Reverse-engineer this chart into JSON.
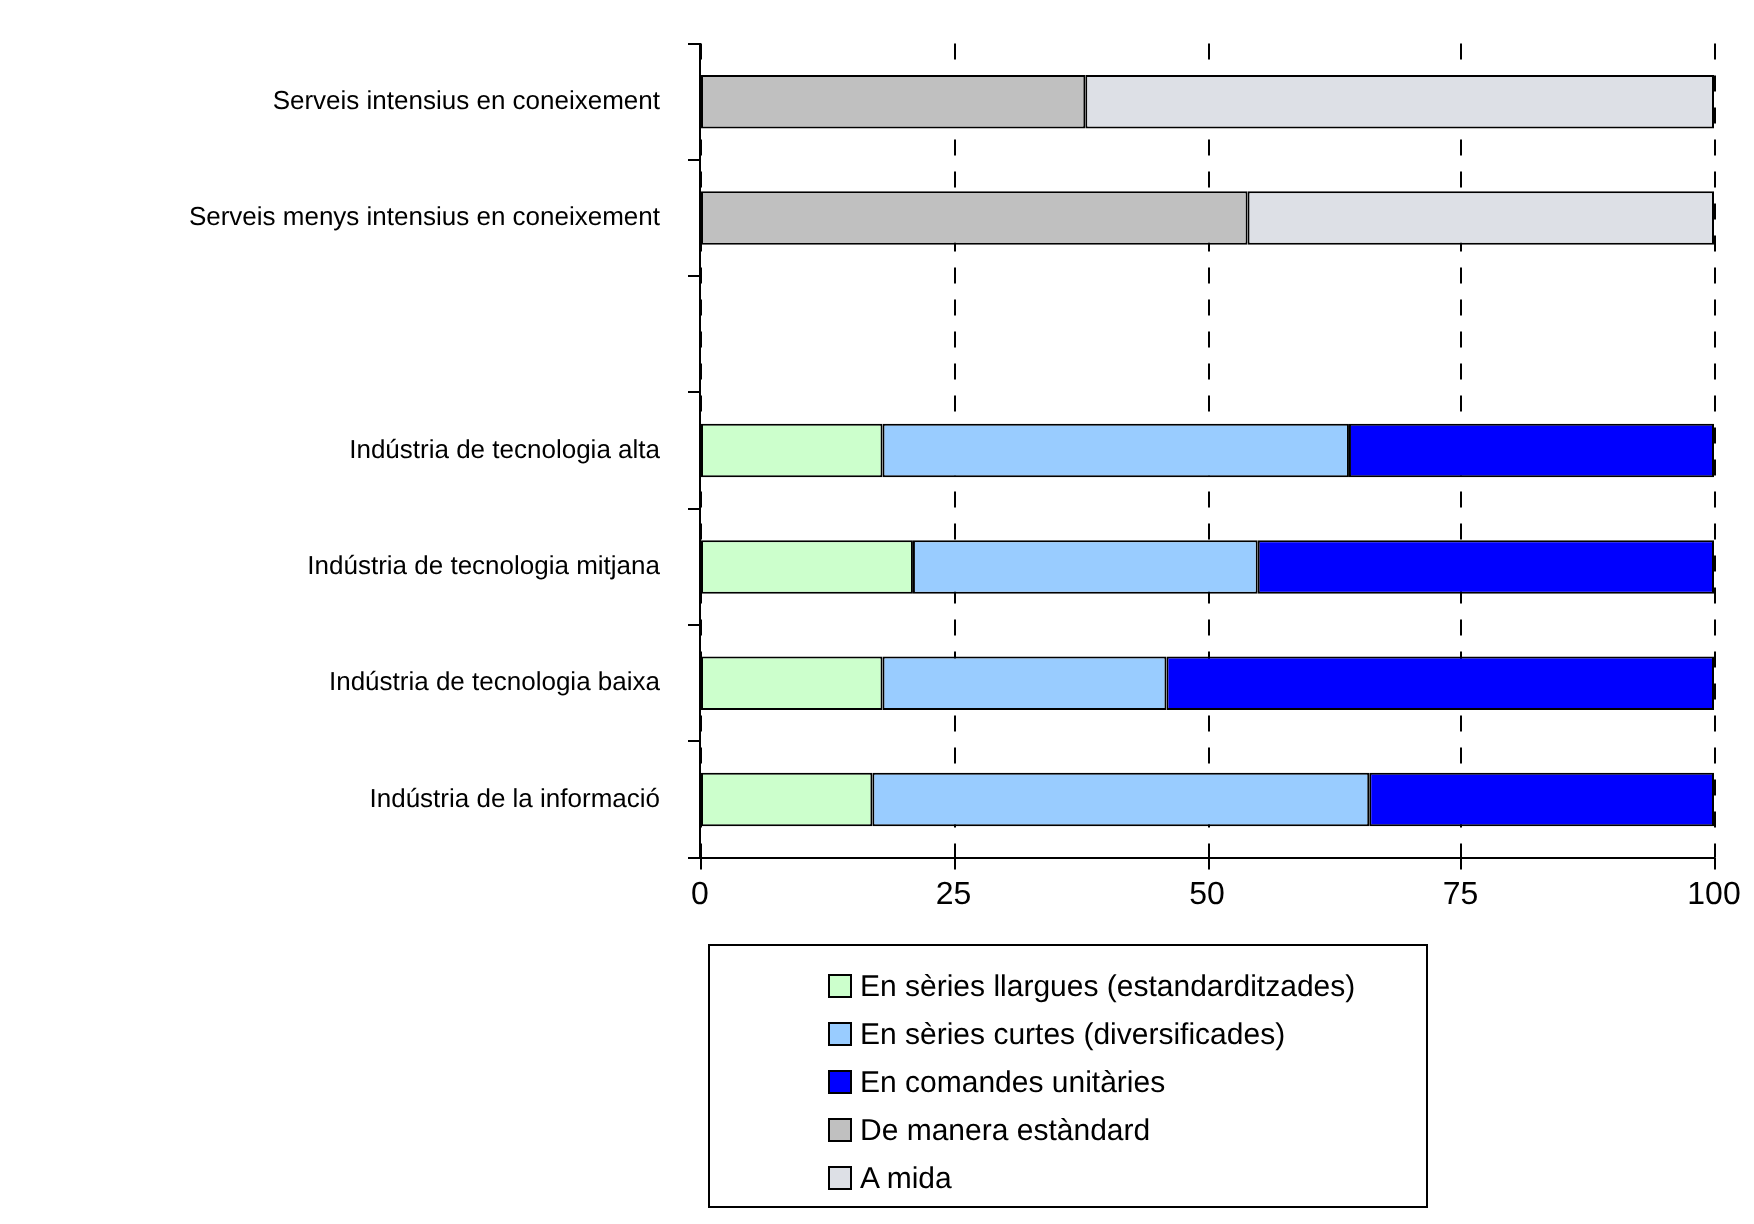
{
  "chart_data": {
    "type": "bar",
    "orientation": "horizontal",
    "stacked": true,
    "categories": [
      "Serveis intensius en coneixement",
      "Serveis menys intensius en coneixement",
      null,
      "Indústria de tecnologia alta",
      "Indústria de tecnologia mitjana",
      "Indústria de tecnologia baixa",
      "Indústria de la informació"
    ],
    "series": [
      {
        "name": "En sèries llargues (estandarditzades)",
        "color": "#ccffcc",
        "values": [
          null,
          null,
          null,
          18,
          21,
          18,
          17
        ]
      },
      {
        "name": "En sèries curtes (diversificades)",
        "color": "#99ccff",
        "values": [
          null,
          null,
          null,
          46,
          34,
          28,
          49
        ]
      },
      {
        "name": "En comandes unitàries",
        "color": "#0000ff",
        "values": [
          null,
          null,
          null,
          36,
          45,
          54,
          34
        ]
      },
      {
        "name": "De manera estàndard",
        "color": "#c0c0c0",
        "values": [
          38,
          54,
          null,
          null,
          null,
          null,
          null
        ]
      },
      {
        "name": "A mida",
        "color": "#dde0e6",
        "values": [
          62,
          46,
          null,
          null,
          null,
          null,
          null
        ]
      }
    ],
    "xlim": [
      0,
      100
    ],
    "xticks": [
      0,
      25,
      50,
      75,
      100
    ],
    "grid": "x",
    "legend": "bottom"
  }
}
